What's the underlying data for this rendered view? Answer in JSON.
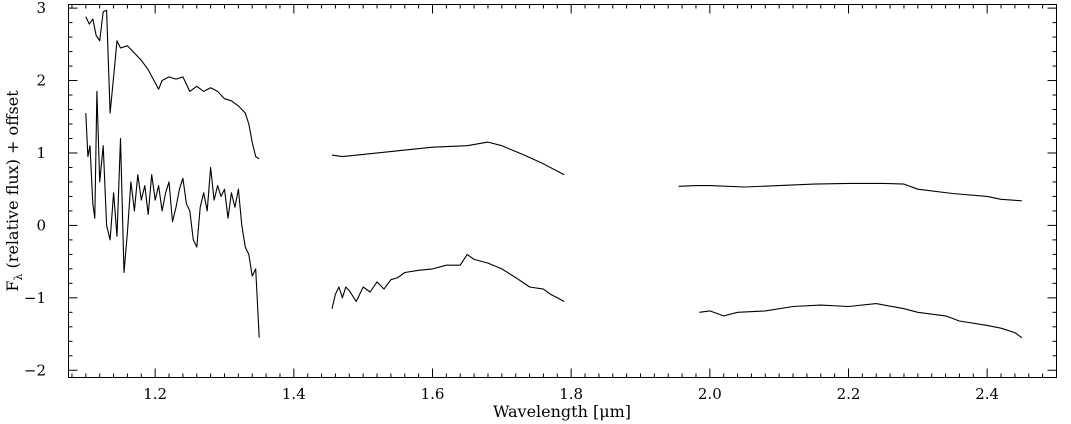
{
  "chart_data": {
    "type": "line",
    "title": "",
    "xlabel": "Wavelength [μm]",
    "ylabel": "F",
    "ylabel_subscript": "λ",
    "ylabel_suffix": " (relative flux) + offset",
    "xlim": [
      1.075,
      2.5
    ],
    "ylim": [
      -2.1,
      3.05
    ],
    "x_major_ticks": [
      1.2,
      1.4,
      1.6,
      1.8,
      2.0,
      2.2,
      2.4
    ],
    "x_tick_labels": [
      "1.2",
      "1.4",
      "1.6",
      "1.8",
      "2.0",
      "2.2",
      "2.4"
    ],
    "x_minor_step": 0.02,
    "y_major_ticks": [
      -2,
      -1,
      0,
      1,
      2,
      3
    ],
    "y_tick_labels": [
      "−2",
      "−1",
      "0",
      "1",
      "2",
      "3"
    ],
    "y_minor_step": 0.2,
    "grid": false,
    "series": [
      {
        "segments": [
          [
            [
              1.1,
              2.88
            ],
            [
              1.105,
              2.78
            ],
            [
              1.11,
              2.85
            ],
            [
              1.115,
              2.62
            ],
            [
              1.12,
              2.55
            ],
            [
              1.125,
              2.95
            ],
            [
              1.13,
              2.97
            ],
            [
              1.135,
              1.55
            ],
            [
              1.14,
              2.05
            ],
            [
              1.145,
              2.55
            ],
            [
              1.15,
              2.45
            ],
            [
              1.16,
              2.48
            ],
            [
              1.17,
              2.38
            ],
            [
              1.18,
              2.28
            ],
            [
              1.19,
              2.15
            ],
            [
              1.2,
              1.97
            ],
            [
              1.205,
              1.88
            ],
            [
              1.21,
              2.0
            ],
            [
              1.22,
              2.05
            ],
            [
              1.23,
              2.02
            ],
            [
              1.24,
              2.05
            ],
            [
              1.25,
              1.85
            ],
            [
              1.26,
              1.92
            ],
            [
              1.27,
              1.85
            ],
            [
              1.28,
              1.9
            ],
            [
              1.29,
              1.85
            ],
            [
              1.3,
              1.75
            ],
            [
              1.31,
              1.72
            ],
            [
              1.32,
              1.65
            ],
            [
              1.33,
              1.55
            ],
            [
              1.335,
              1.4
            ],
            [
              1.34,
              1.15
            ],
            [
              1.345,
              0.95
            ],
            [
              1.35,
              0.92
            ]
          ],
          [
            [
              1.455,
              0.97
            ],
            [
              1.47,
              0.95
            ],
            [
              1.5,
              0.98
            ],
            [
              1.55,
              1.03
            ],
            [
              1.6,
              1.08
            ],
            [
              1.65,
              1.1
            ],
            [
              1.68,
              1.15
            ],
            [
              1.7,
              1.1
            ],
            [
              1.73,
              0.98
            ],
            [
              1.76,
              0.85
            ],
            [
              1.78,
              0.75
            ],
            [
              1.79,
              0.7
            ]
          ],
          [
            [
              1.955,
              0.54
            ],
            [
              1.98,
              0.55
            ],
            [
              2.0,
              0.55
            ],
            [
              2.05,
              0.53
            ],
            [
              2.1,
              0.55
            ],
            [
              2.15,
              0.57
            ],
            [
              2.2,
              0.58
            ],
            [
              2.25,
              0.58
            ],
            [
              2.28,
              0.57
            ],
            [
              2.3,
              0.5
            ],
            [
              2.35,
              0.44
            ],
            [
              2.4,
              0.4
            ],
            [
              2.42,
              0.36
            ],
            [
              2.45,
              0.34
            ]
          ]
        ]
      },
      {
        "segments": [
          [
            [
              1.1,
              1.55
            ],
            [
              1.103,
              0.95
            ],
            [
              1.106,
              1.1
            ],
            [
              1.11,
              0.3
            ],
            [
              1.113,
              0.1
            ],
            [
              1.116,
              1.85
            ],
            [
              1.12,
              0.6
            ],
            [
              1.125,
              1.1
            ],
            [
              1.13,
              0.0
            ],
            [
              1.135,
              -0.2
            ],
            [
              1.14,
              0.45
            ],
            [
              1.145,
              -0.15
            ],
            [
              1.15,
              1.2
            ],
            [
              1.155,
              -0.65
            ],
            [
              1.16,
              -0.1
            ],
            [
              1.165,
              0.6
            ],
            [
              1.17,
              0.2
            ],
            [
              1.175,
              0.7
            ],
            [
              1.18,
              0.35
            ],
            [
              1.185,
              0.55
            ],
            [
              1.19,
              0.15
            ],
            [
              1.195,
              0.7
            ],
            [
              1.2,
              0.35
            ],
            [
              1.205,
              0.55
            ],
            [
              1.21,
              0.2
            ],
            [
              1.215,
              0.45
            ],
            [
              1.22,
              0.6
            ],
            [
              1.225,
              0.05
            ],
            [
              1.23,
              0.25
            ],
            [
              1.235,
              0.5
            ],
            [
              1.24,
              0.65
            ],
            [
              1.245,
              0.3
            ],
            [
              1.25,
              0.2
            ],
            [
              1.255,
              -0.2
            ],
            [
              1.26,
              -0.3
            ],
            [
              1.265,
              0.25
            ],
            [
              1.27,
              0.45
            ],
            [
              1.275,
              0.2
            ],
            [
              1.28,
              0.8
            ],
            [
              1.285,
              0.35
            ],
            [
              1.29,
              0.55
            ],
            [
              1.295,
              0.4
            ],
            [
              1.3,
              0.5
            ],
            [
              1.305,
              0.1
            ],
            [
              1.31,
              0.45
            ],
            [
              1.315,
              0.25
            ],
            [
              1.32,
              0.5
            ],
            [
              1.325,
              0.0
            ],
            [
              1.33,
              -0.3
            ],
            [
              1.335,
              -0.4
            ],
            [
              1.34,
              -0.7
            ],
            [
              1.345,
              -0.6
            ],
            [
              1.35,
              -1.55
            ]
          ],
          [
            [
              1.455,
              -1.15
            ],
            [
              1.46,
              -0.95
            ],
            [
              1.465,
              -0.85
            ],
            [
              1.47,
              -1.0
            ],
            [
              1.475,
              -0.85
            ],
            [
              1.48,
              -0.9
            ],
            [
              1.49,
              -1.05
            ],
            [
              1.5,
              -0.85
            ],
            [
              1.51,
              -0.92
            ],
            [
              1.52,
              -0.78
            ],
            [
              1.53,
              -0.88
            ],
            [
              1.54,
              -0.75
            ],
            [
              1.55,
              -0.72
            ],
            [
              1.56,
              -0.65
            ],
            [
              1.58,
              -0.62
            ],
            [
              1.6,
              -0.6
            ],
            [
              1.62,
              -0.55
            ],
            [
              1.64,
              -0.55
            ],
            [
              1.65,
              -0.4
            ],
            [
              1.66,
              -0.47
            ],
            [
              1.68,
              -0.52
            ],
            [
              1.7,
              -0.6
            ],
            [
              1.72,
              -0.72
            ],
            [
              1.74,
              -0.85
            ],
            [
              1.76,
              -0.88
            ],
            [
              1.77,
              -0.95
            ],
            [
              1.78,
              -1.0
            ],
            [
              1.79,
              -1.05
            ]
          ],
          [
            [
              1.985,
              -1.2
            ],
            [
              2.0,
              -1.18
            ],
            [
              2.02,
              -1.25
            ],
            [
              2.04,
              -1.2
            ],
            [
              2.08,
              -1.18
            ],
            [
              2.12,
              -1.12
            ],
            [
              2.16,
              -1.1
            ],
            [
              2.2,
              -1.12
            ],
            [
              2.24,
              -1.08
            ],
            [
              2.28,
              -1.15
            ],
            [
              2.3,
              -1.2
            ],
            [
              2.34,
              -1.25
            ],
            [
              2.36,
              -1.32
            ],
            [
              2.4,
              -1.38
            ],
            [
              2.42,
              -1.42
            ],
            [
              2.44,
              -1.48
            ],
            [
              2.45,
              -1.55
            ]
          ]
        ]
      }
    ]
  }
}
